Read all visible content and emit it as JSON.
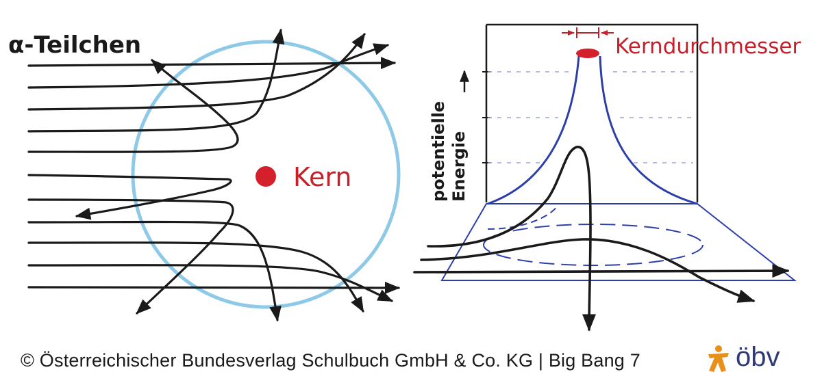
{
  "left_panel": {
    "particle_label": "α-Teilchen",
    "nucleus_label": "Kern"
  },
  "right_panel": {
    "diameter_label": "Kerndurchmesser",
    "axis_label_line1": "potentielle",
    "axis_label_line2": "Energie"
  },
  "footer": {
    "copyright": "© Österreichischer Bundesverlag Schulbuch GmbH & Co. KG |  Big Bang 7"
  },
  "logo": {
    "text": "öbv",
    "icon": "star-person-icon"
  },
  "colors": {
    "ink": "#1a1a1a",
    "atom_circle": "#8ec9e8",
    "nucleus": "#d4202a",
    "label_red": "#c8202a",
    "funnel_blue": "#2c3fa8",
    "logo_orange": "#e8901a",
    "logo_blue": "#2f3a7a"
  }
}
